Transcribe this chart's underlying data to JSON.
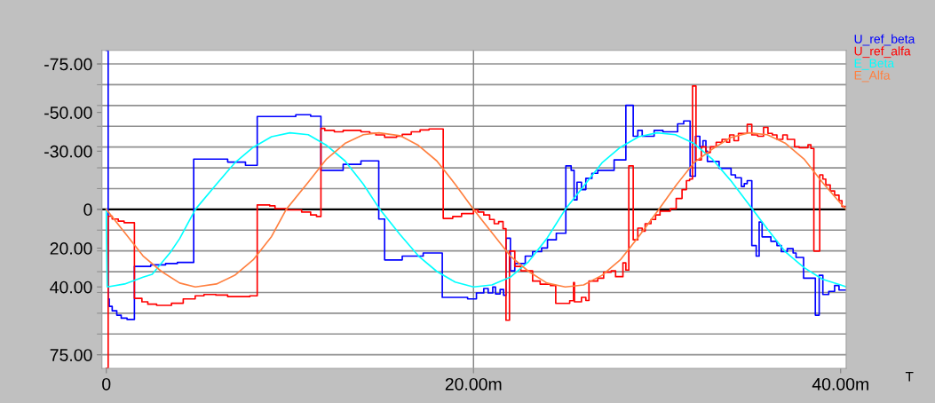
{
  "chart_data": {
    "type": "line",
    "xlabel": "T",
    "xlim": [
      -0.24,
      40.3
    ],
    "xticks": [
      0,
      {
        "value": 20,
        "label": "20.00m"
      },
      {
        "value": 40,
        "label": "40.00m"
      }
    ],
    "ylim": [
      82,
      -82
    ],
    "yticks": [
      {
        "value": -75,
        "label": "-75.00"
      },
      {
        "value": -50,
        "label": "-50.00"
      },
      {
        "value": -30,
        "label": "-30.00"
      },
      0,
      {
        "value": 20,
        "label": "20.00"
      },
      {
        "value": 40,
        "label": "40.00"
      },
      {
        "value": 75,
        "label": "75.00"
      },
      {
        "value": -75,
        "label": null
      },
      {
        "value": -64.29,
        "label": null
      },
      {
        "value": -53.57,
        "label": null
      },
      {
        "value": -42.86,
        "label": null
      },
      {
        "value": -32.14,
        "label": null
      },
      {
        "value": -21.43,
        "label": null
      },
      {
        "value": -10.71,
        "label": null
      },
      {
        "value": 0,
        "label": null
      },
      {
        "value": 10.71,
        "label": null
      },
      {
        "value": 21.43,
        "label": null
      },
      {
        "value": 32.14,
        "label": null
      },
      {
        "value": 42.86,
        "label": null
      },
      {
        "value": 53.57,
        "label": null
      },
      {
        "value": 64.29,
        "label": null
      },
      {
        "value": 75,
        "label": null
      }
    ],
    "grid": "y",
    "legend": "top right",
    "ref_lines": [
      {
        "axis": "y",
        "value": 0,
        "color": "#000000"
      },
      {
        "axis": "x",
        "value": 20,
        "color": "#808080"
      }
    ],
    "series": [
      {
        "name": "U_ref_beta",
        "color": "#0000ff",
        "type": "step",
        "x": [
          0,
          0.1,
          0.16,
          0.32,
          0.57,
          0.81,
          1.13,
          1.53,
          2.42,
          3.23,
          3.87,
          4.76,
          6.61,
          7.58,
          8.22,
          10.32,
          11.13,
          11.69,
          12.9,
          13.87,
          14.84,
          15.16,
          16.12,
          17.26,
          18.3,
          19.68,
          20.16,
          20.56,
          20.8,
          21.05,
          21.2,
          21.45,
          21.64,
          21.77,
          22.01,
          22.25,
          22.82,
          23.22,
          23.71,
          24.03,
          24.51,
          25.03,
          25.32,
          25.48,
          25.64,
          25.88,
          26.12,
          26.45,
          26.77,
          27.66,
          28.3,
          28.7,
          28.95,
          29.19,
          29.84,
          30.32,
          31.12,
          31.45,
          31.8,
          32.09,
          32.33,
          32.5,
          32.66,
          32.74,
          33.38,
          34.03,
          34.27,
          34.59,
          34.75,
          34.91,
          35.16,
          35.4,
          35.56,
          35.72,
          36.2,
          36.53,
          36.77,
          37.09,
          37.41,
          37.57,
          37.98,
          38.62,
          38.83,
          39.03,
          39.35,
          39.67,
          39.91,
          40.28
        ],
        "values": [
          -82,
          46.2,
          50.0,
          52.3,
          54.6,
          56.1,
          56.8,
          29.4,
          28.6,
          27.9,
          27.4,
          -25.9,
          -24.4,
          -22.7,
          -47.9,
          -48.8,
          -48.0,
          -20.1,
          -23.2,
          -25.0,
          5.0,
          26.1,
          24.1,
          22.5,
          45.4,
          46.2,
          43.1,
          40.8,
          43.1,
          40.1,
          43.6,
          41.3,
          44.3,
          14.9,
          31.7,
          27.9,
          24.1,
          21.8,
          19.9,
          15.7,
          12.3,
          -22.4,
          -20.1,
          -4.9,
          -14.0,
          -10.2,
          -16.0,
          -18.6,
          -20.1,
          -25.5,
          -53.7,
          -37.7,
          -40.7,
          -37.7,
          -40.7,
          -40.0,
          -44.1,
          -45.6,
          -17.1,
          -37.7,
          -32.3,
          -35.4,
          -30.0,
          -24.7,
          -21.2,
          -17.8,
          -16.3,
          -11.8,
          -13.3,
          -14.8,
          18.7,
          24.1,
          6.5,
          14.2,
          16.5,
          18.7,
          21.8,
          20.3,
          22.5,
          24.8,
          35.5,
          54.6,
          34.0,
          43.9,
          42.3,
          39.3,
          41.6,
          41.6
        ]
      },
      {
        "name": "U_ref_alfa",
        "color": "#ff0000",
        "type": "step",
        "x": [
          0,
          0.1,
          0.32,
          0.65,
          0.97,
          1.53,
          1.94,
          2.26,
          2.74,
          3.55,
          4.19,
          4.84,
          5.32,
          5.97,
          6.61,
          7.82,
          8.22,
          8.9,
          9.19,
          9.84,
          10.64,
          11.13,
          11.45,
          11.69,
          11.9,
          12.42,
          12.9,
          13.87,
          14.35,
          14.68,
          15.16,
          15.81,
          16.12,
          16.61,
          17.09,
          17.58,
          18.35,
          18.87,
          19.35,
          20.0,
          20.24,
          20.56,
          20.88,
          21.13,
          21.37,
          21.61,
          21.77,
          21.96,
          22.25,
          22.58,
          23.22,
          23.63,
          24.19,
          24.48,
          25.24,
          25.45,
          25.5,
          25.88,
          26.12,
          26.29,
          26.77,
          27.09,
          27.5,
          27.74,
          28.14,
          28.3,
          28.46,
          28.7,
          28.95,
          29.19,
          29.35,
          29.67,
          29.92,
          30.16,
          30.72,
          31.04,
          31.36,
          31.6,
          31.77,
          31.93,
          32.12,
          32.41,
          32.66,
          32.9,
          33.22,
          33.54,
          33.79,
          33.95,
          34.19,
          34.43,
          34.91,
          35.16,
          35.48,
          35.8,
          36.04,
          36.28,
          36.53,
          36.85,
          37.09,
          37.41,
          37.49,
          37.74,
          38.22,
          38.38,
          38.54,
          38.86,
          39.03,
          39.19,
          39.43,
          39.67,
          39.91,
          40.07,
          40.28
        ],
        "values": [
          82,
          3.5,
          5.0,
          6.1,
          6.9,
          45.9,
          47.7,
          48.9,
          49.5,
          48.4,
          46.2,
          44.6,
          43.9,
          44.2,
          45.0,
          44.6,
          -2.3,
          -1.8,
          -0.4,
          0.3,
          1.4,
          2.9,
          3.7,
          -41.8,
          -40.7,
          -40.0,
          -40.7,
          -40.0,
          -39.2,
          -38.4,
          -37.2,
          -37.7,
          -38.7,
          -40.0,
          -41.0,
          -41.5,
          4.7,
          3.7,
          2.2,
          0.3,
          1.4,
          2.9,
          5.2,
          7.4,
          6.3,
          10.0,
          57.2,
          21.5,
          29.4,
          31.7,
          37.0,
          38.6,
          39.3,
          48.5,
          47.1,
          37.8,
          47.7,
          45.4,
          47.0,
          37.0,
          35.5,
          32.4,
          31.7,
          34.7,
          27.6,
          31.3,
          -22.4,
          15.7,
          9.7,
          11.2,
          7.4,
          5.2,
          2.9,
          0.9,
          -0.3,
          -5.6,
          -10.2,
          -14.8,
          -15.6,
          -63.6,
          -25.5,
          -32.3,
          -29.3,
          -32.3,
          -34.6,
          -36.1,
          -34.6,
          -38.4,
          -35.4,
          -39.2,
          -43.8,
          -38.4,
          -37.7,
          -42.3,
          -39.2,
          -38.4,
          -36.1,
          -38.4,
          -36.1,
          -36.1,
          -32.3,
          -31.8,
          -33.3,
          -31.4,
          21.5,
          -17.8,
          -15.6,
          -12.6,
          -9.5,
          -7.3,
          -4.5,
          -1.5,
          -1.5
        ]
      },
      {
        "name": "E_Beta",
        "color": "#00ffff",
        "x": [
          0,
          0.05,
          1,
          2,
          2.5,
          3.5,
          4,
          4.85,
          6,
          7,
          8,
          9,
          10,
          11,
          12,
          13,
          14,
          14.9,
          16,
          17,
          18,
          19,
          20,
          21,
          22,
          23,
          24,
          25,
          26,
          27,
          28,
          29,
          30,
          31,
          32,
          33,
          34,
          35.2,
          36,
          37,
          38,
          39,
          40,
          40.3
        ],
        "values": [
          0,
          40,
          38.5,
          35,
          33.5,
          22,
          15,
          0,
          -13,
          -24,
          -32,
          -37.5,
          -39.5,
          -38.5,
          -33,
          -25,
          -13,
          0,
          13,
          24,
          32,
          37.5,
          40,
          39,
          35,
          27,
          15,
          0,
          -12,
          -24,
          -32,
          -37.5,
          -39.5,
          -38.5,
          -34,
          -26,
          -15,
          0,
          10,
          22,
          30,
          36,
          39,
          40
        ]
      },
      {
        "name": "E_Alfa",
        "color": "#ff8040",
        "x": [
          0,
          1,
          2,
          3,
          4,
          4.85,
          6,
          7,
          8,
          9,
          9.8,
          11,
          12,
          13,
          14,
          14.85,
          16,
          17,
          18,
          19,
          20,
          21,
          22,
          23,
          24,
          25,
          26,
          27,
          28,
          29,
          30.1,
          31,
          32,
          33,
          34,
          35,
          36,
          37,
          38,
          39,
          40,
          40.3
        ],
        "values": [
          0,
          12,
          24,
          32,
          38,
          40,
          38.5,
          34,
          26,
          14,
          0,
          -14,
          -26,
          -34,
          -38.5,
          -39.5,
          -38,
          -33,
          -25,
          -13,
          0,
          12,
          24,
          32,
          38,
          40,
          39,
          34,
          26,
          14,
          0,
          -12,
          -24,
          -31,
          -37,
          -39.5,
          -38.5,
          -34,
          -26,
          -14,
          -3,
          0
        ]
      }
    ]
  }
}
